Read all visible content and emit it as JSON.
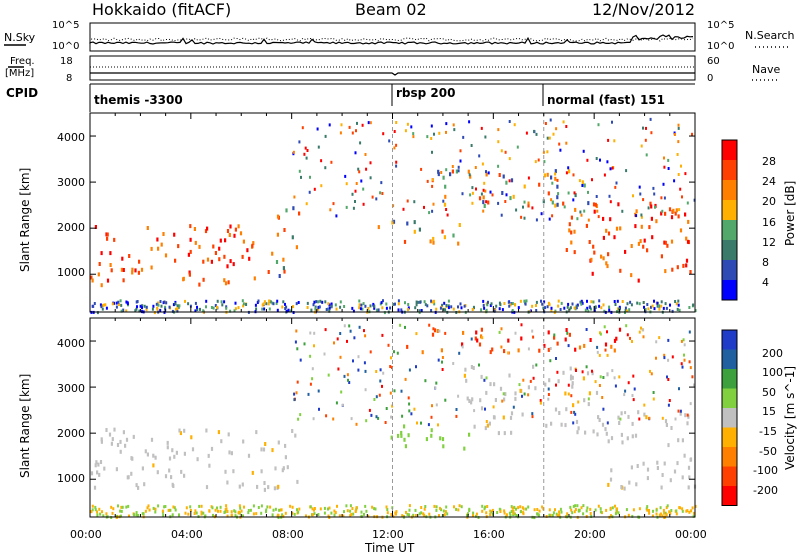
{
  "header": {
    "station": "Hokkaido (fitACF)",
    "beam": "Beam 02",
    "date": "12/Nov/2012"
  },
  "noise_panel": {
    "left_label": "N.Sky",
    "right_label": "N.Search",
    "tick_top": "10^5",
    "tick_bottom": "10^0"
  },
  "freq_panel": {
    "left_label_1": "Freq.",
    "left_label_2": "[MHz]",
    "right_label": "Nave",
    "left_ticks": [
      "18",
      "8"
    ],
    "right_ticks": [
      "60",
      "0"
    ]
  },
  "cpid_panel": {
    "label": "CPID",
    "segments": [
      {
        "name": "themis -3300",
        "start_hour": 0
      },
      {
        "name": "rbsp 200",
        "start_hour": 12
      },
      {
        "name": "normal (fast) 151",
        "start_hour": 18
      }
    ]
  },
  "colors": {
    "power_scale": [
      "#0000ff",
      "#2e4ab4",
      "#3a7a6a",
      "#52a86a",
      "#ffb000",
      "#ff8000",
      "#ff4000",
      "#ff0000"
    ],
    "velocity_scale": [
      "#ff0000",
      "#ff4000",
      "#ff8000",
      "#ffb000",
      "#c0c0c0",
      "#80d040",
      "#3ca03c",
      "#2060a0",
      "#1e3cc8"
    ],
    "scatter_gray": "#c0c0c0"
  },
  "chart_data": [
    {
      "type": "heatmap",
      "name": "power",
      "ylabel": "Slant Range [km]",
      "xlabel": "",
      "ylim": [
        180,
        4500
      ],
      "xlim": [
        0,
        24
      ],
      "y_ticks": [
        "1000",
        "2000",
        "3000",
        "4000"
      ],
      "x_ticks": [],
      "colorbar": {
        "label": "Power [dB]",
        "ticks": [
          "28",
          "24",
          "20",
          "16",
          "12",
          "8",
          "4"
        ]
      },
      "regions": [
        {
          "t0": 0.0,
          "t1": 7.2,
          "r0": 800,
          "r1": 2100,
          "value": "high"
        },
        {
          "t0": 7.3,
          "t1": 8.3,
          "r0": 1000,
          "r1": 2500,
          "value": "mid"
        },
        {
          "t0": 11.3,
          "t1": 14.8,
          "r0": 1700,
          "r1": 2200,
          "value": "mid"
        },
        {
          "t0": 13.5,
          "t1": 19.8,
          "r0": 2500,
          "r1": 3300,
          "value": "mid"
        },
        {
          "t0": 18.5,
          "t1": 23.8,
          "r0": 900,
          "r1": 2600,
          "value": "high"
        }
      ]
    },
    {
      "type": "heatmap",
      "name": "velocity",
      "ylabel": "Slant Range [km]",
      "xlabel": "Time UT",
      "ylim": [
        180,
        4500
      ],
      "xlim": [
        0,
        24
      ],
      "y_ticks": [
        "1000",
        "2000",
        "3000",
        "4000"
      ],
      "x_ticks": [
        "00:00",
        "04:00",
        "08:00",
        "12:00",
        "16:00",
        "20:00",
        "00:00"
      ],
      "colorbar": {
        "label": "Velocity [m s^-1]",
        "ticks": [
          "200",
          "100",
          "50",
          "15",
          "-15",
          "-50",
          "-100",
          "-200"
        ]
      },
      "regions": [
        {
          "t0": 0.0,
          "t1": 8.2,
          "r0": 800,
          "r1": 2150,
          "value": "-15..15"
        },
        {
          "t0": 11.5,
          "t1": 15.0,
          "r0": 1700,
          "r1": 2200,
          "value": "15..50"
        },
        {
          "t0": 14.8,
          "t1": 20.5,
          "r0": 2000,
          "r1": 3500,
          "value": "-15..15"
        },
        {
          "t0": 20.5,
          "t1": 24.0,
          "r0": 800,
          "r1": 2500,
          "value": "-15..15"
        },
        {
          "t0": 12.5,
          "t1": 21.0,
          "r0": 3800,
          "r1": 4300,
          "value": "-200..-100"
        }
      ]
    }
  ]
}
